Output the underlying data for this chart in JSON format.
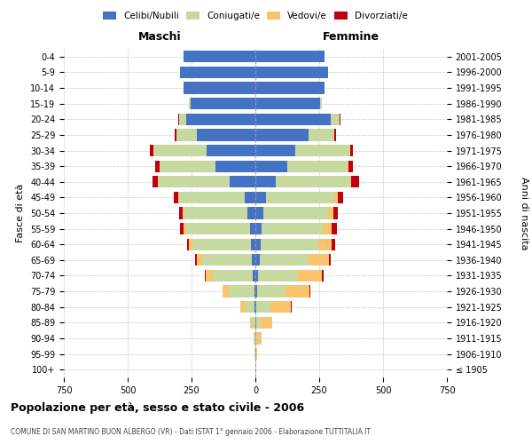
{
  "age_groups": [
    "100+",
    "95-99",
    "90-94",
    "85-89",
    "80-84",
    "75-79",
    "70-74",
    "65-69",
    "60-64",
    "55-59",
    "50-54",
    "45-49",
    "40-44",
    "35-39",
    "30-34",
    "25-29",
    "20-24",
    "15-19",
    "10-14",
    "5-9",
    "0-4"
  ],
  "birth_years": [
    "≤ 1905",
    "1906-1910",
    "1911-1915",
    "1916-1920",
    "1921-1925",
    "1926-1930",
    "1931-1935",
    "1936-1940",
    "1941-1945",
    "1946-1950",
    "1951-1955",
    "1956-1960",
    "1961-1965",
    "1966-1970",
    "1971-1975",
    "1976-1980",
    "1981-1985",
    "1986-1990",
    "1991-1995",
    "1996-2000",
    "2001-2005"
  ],
  "maschi": {
    "celibi": [
      0,
      0,
      0,
      1,
      2,
      5,
      10,
      15,
      18,
      22,
      30,
      40,
      100,
      155,
      190,
      230,
      270,
      255,
      280,
      295,
      280
    ],
    "coniugati": [
      0,
      2,
      5,
      12,
      40,
      100,
      155,
      195,
      230,
      250,
      250,
      260,
      280,
      220,
      210,
      80,
      30,
      5,
      2,
      0,
      0
    ],
    "vedovi": [
      0,
      1,
      3,
      8,
      18,
      25,
      30,
      20,
      12,
      8,
      5,
      3,
      2,
      1,
      0,
      0,
      0,
      0,
      0,
      0,
      0
    ],
    "divorziati": [
      0,
      0,
      0,
      0,
      0,
      0,
      2,
      5,
      8,
      15,
      12,
      18,
      22,
      18,
      12,
      5,
      2,
      0,
      0,
      0,
      0
    ]
  },
  "femmine": {
    "nubili": [
      0,
      0,
      0,
      2,
      4,
      8,
      12,
      18,
      20,
      25,
      30,
      40,
      80,
      125,
      155,
      210,
      295,
      255,
      270,
      285,
      270
    ],
    "coniugate": [
      0,
      3,
      8,
      20,
      55,
      110,
      150,
      190,
      225,
      240,
      255,
      270,
      290,
      235,
      215,
      100,
      35,
      5,
      2,
      0,
      0
    ],
    "vedove": [
      2,
      5,
      18,
      45,
      80,
      95,
      100,
      80,
      55,
      35,
      20,
      12,
      5,
      3,
      1,
      0,
      0,
      0,
      0,
      0,
      0
    ],
    "divorziate": [
      0,
      0,
      0,
      0,
      2,
      3,
      5,
      8,
      12,
      20,
      18,
      22,
      30,
      20,
      12,
      5,
      2,
      0,
      0,
      0,
      0
    ]
  },
  "colors": {
    "celibi_nubili": "#4472c4",
    "coniugati": "#c5d9a0",
    "vedovi": "#f9c46c",
    "divorziati": "#c0000c"
  },
  "title": "Popolazione per età, sesso e stato civile - 2006",
  "subtitle": "COMUNE DI SAN MARTINO BUON ALBERGO (VR) - Dati ISTAT 1° gennaio 2006 - Elaborazione TUTTITALIA.IT",
  "label_maschi": "Maschi",
  "label_femmine": "Femmine",
  "ylabel_left": "Fasce di età",
  "ylabel_right": "Anni di nascita",
  "legend_labels": [
    "Celibi/Nubili",
    "Coniugati/e",
    "Vedovi/e",
    "Divorziati/e"
  ],
  "xlim": 750,
  "bg_color": "#ffffff",
  "grid_color": "#c8c8c8"
}
